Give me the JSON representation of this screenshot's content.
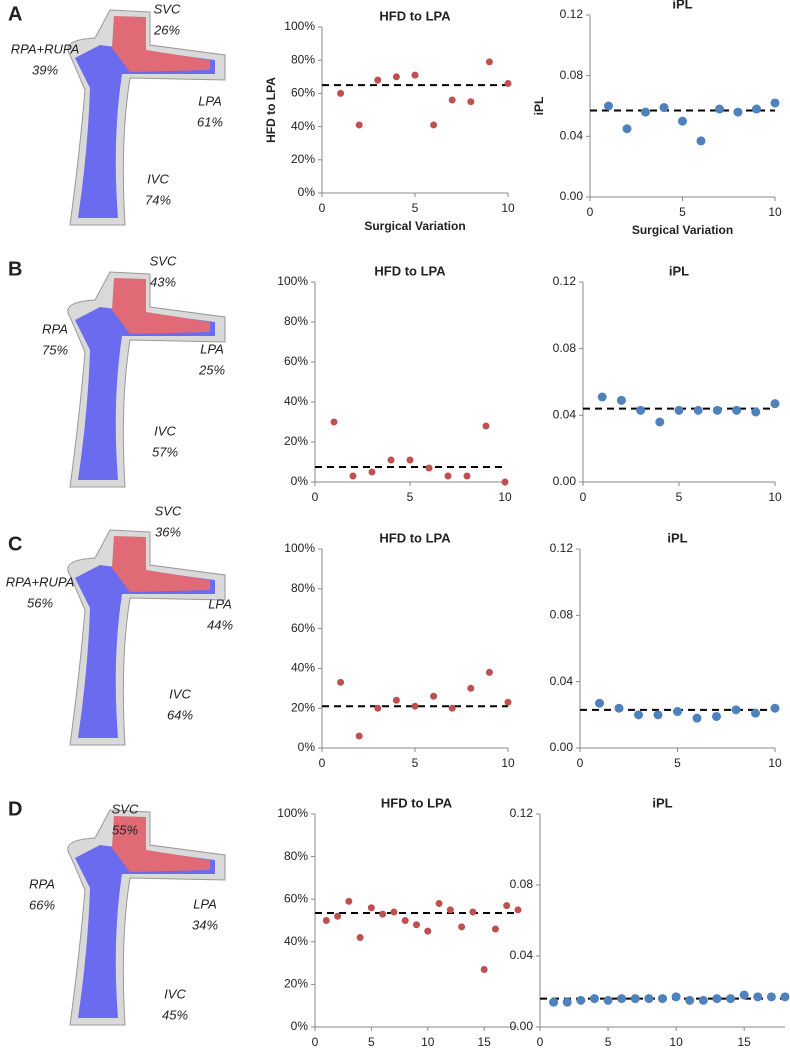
{
  "panels": [
    {
      "letter": "A",
      "labels": [
        [
          "SVC",
          "26%"
        ],
        [
          "RPA+RUPA",
          "39%"
        ],
        [
          "LPA",
          "61%"
        ],
        [
          "IVC",
          "74%"
        ]
      ]
    },
    {
      "letter": "B",
      "labels": [
        [
          "SVC",
          "43%"
        ],
        [
          "RPA",
          "75%"
        ],
        [
          "LPA",
          "25%"
        ],
        [
          "IVC",
          "57%"
        ]
      ]
    },
    {
      "letter": "C",
      "labels": [
        [
          "SVC",
          "36%"
        ],
        [
          "RPA+RUPA",
          "56%"
        ],
        [
          "LPA",
          "44%"
        ],
        [
          "IVC",
          "64%"
        ]
      ]
    },
    {
      "letter": "D",
      "labels": [
        [
          "SVC",
          "55%"
        ],
        [
          "RPA",
          "66%"
        ],
        [
          "LPA",
          "34%"
        ],
        [
          "IVC",
          "45%"
        ]
      ]
    }
  ],
  "chart_data": [
    {
      "type": "scatter",
      "title": "HFD to LPA",
      "ylabel": "HFD to LPA",
      "xlabel": "Surgical Variation",
      "color": "#c0504d",
      "x": [
        1,
        2,
        3,
        4,
        5,
        6,
        7,
        8,
        9,
        10
      ],
      "values": [
        60,
        41,
        68,
        70,
        71,
        41,
        56,
        55,
        79,
        66
      ],
      "hline": 65,
      "xlim": [
        0,
        10
      ],
      "xticks": [
        0,
        5,
        10
      ],
      "ylim": [
        0,
        100
      ],
      "yticks": [
        {
          "value": 0,
          "label": "0%"
        },
        {
          "value": 20,
          "label": "20%"
        },
        {
          "value": 40,
          "label": "40%"
        },
        {
          "value": 60,
          "label": "60%"
        },
        {
          "value": 80,
          "label": "80%"
        },
        {
          "value": 100,
          "label": "100%"
        }
      ]
    },
    {
      "type": "scatter",
      "title": "iPL",
      "ylabel": "iPL",
      "xlabel": "Surgical Variation",
      "color": "#4f81bd",
      "x": [
        1,
        2,
        3,
        4,
        5,
        6,
        7,
        8,
        9,
        10
      ],
      "values": [
        0.06,
        0.045,
        0.056,
        0.059,
        0.05,
        0.037,
        0.058,
        0.056,
        0.058,
        0.062
      ],
      "hline": 0.057,
      "xlim": [
        0,
        10
      ],
      "xticks": [
        0,
        5,
        10
      ],
      "ylim": [
        0,
        0.12
      ],
      "yticks": [
        {
          "value": 0,
          "label": "0.00"
        },
        0.04,
        0.08,
        0.12
      ]
    },
    {
      "type": "scatter",
      "title": "HFD to LPA",
      "color": "#c0504d",
      "x": [
        1,
        2,
        3,
        4,
        5,
        6,
        7,
        8,
        9,
        10
      ],
      "values": [
        30,
        3,
        5,
        11,
        11,
        7,
        3,
        3,
        28,
        0
      ],
      "hline": 7.5,
      "xlim": [
        0,
        10
      ],
      "xticks": [
        0,
        5,
        10
      ],
      "ylim": [
        0,
        100
      ],
      "yticks": [
        {
          "value": 0,
          "label": "0%"
        },
        {
          "value": 20,
          "label": "20%"
        },
        {
          "value": 40,
          "label": "40%"
        },
        {
          "value": 60,
          "label": "60%"
        },
        {
          "value": 80,
          "label": "80%"
        },
        {
          "value": 100,
          "label": "100%"
        }
      ]
    },
    {
      "type": "scatter",
      "title": "iPL",
      "color": "#4f81bd",
      "x": [
        1,
        2,
        3,
        4,
        5,
        6,
        7,
        8,
        9,
        10
      ],
      "values": [
        0.051,
        0.049,
        0.043,
        0.036,
        0.043,
        0.043,
        0.043,
        0.043,
        0.042,
        0.047
      ],
      "hline": 0.044,
      "xlim": [
        0,
        10
      ],
      "xticks": [
        0,
        5,
        10
      ],
      "ylim": [
        0,
        0.12
      ],
      "yticks": [
        {
          "value": 0,
          "label": "0.00"
        },
        0.04,
        0.08,
        0.12
      ]
    },
    {
      "type": "scatter",
      "title": "HFD to LPA",
      "color": "#c0504d",
      "x": [
        1,
        2,
        3,
        4,
        5,
        6,
        7,
        8,
        9,
        10
      ],
      "values": [
        33,
        6,
        20,
        24,
        21,
        26,
        20,
        30,
        38,
        23
      ],
      "hline": 21,
      "xlim": [
        0,
        10
      ],
      "xticks": [
        0,
        5,
        10
      ],
      "ylim": [
        0,
        100
      ],
      "yticks": [
        {
          "value": 0,
          "label": "0%"
        },
        {
          "value": 20,
          "label": "20%"
        },
        {
          "value": 40,
          "label": "40%"
        },
        {
          "value": 60,
          "label": "60%"
        },
        {
          "value": 80,
          "label": "80%"
        },
        {
          "value": 100,
          "label": "100%"
        }
      ]
    },
    {
      "type": "scatter",
      "title": "iPL",
      "color": "#4f81bd",
      "x": [
        1,
        2,
        3,
        4,
        5,
        6,
        7,
        8,
        9,
        10
      ],
      "values": [
        0.027,
        0.024,
        0.02,
        0.02,
        0.022,
        0.018,
        0.019,
        0.023,
        0.021,
        0.024
      ],
      "hline": 0.023,
      "xlim": [
        0,
        10
      ],
      "xticks": [
        0,
        5,
        10
      ],
      "ylim": [
        0,
        0.12
      ],
      "yticks": [
        {
          "value": 0,
          "label": "0.00"
        },
        0.04,
        0.08,
        0.12
      ]
    },
    {
      "type": "scatter",
      "title": "HFD to LPA",
      "color": "#c0504d",
      "x": [
        1,
        2,
        3,
        4,
        5,
        6,
        7,
        8,
        9,
        10,
        11,
        12,
        13,
        14,
        15,
        16,
        17,
        18
      ],
      "values": [
        50,
        52,
        59,
        42,
        56,
        53,
        54,
        50,
        48,
        45,
        58,
        55,
        47,
        54,
        27,
        46,
        57,
        55
      ],
      "hline": 53.5,
      "xlim": [
        0,
        18
      ],
      "xticks": [
        0,
        5,
        10,
        15
      ],
      "ylim": [
        0,
        100
      ],
      "yticks": [
        {
          "value": 0,
          "label": "0%"
        },
        {
          "value": 20,
          "label": "20%"
        },
        {
          "value": 40,
          "label": "40%"
        },
        {
          "value": 60,
          "label": "60%"
        },
        {
          "value": 80,
          "label": "80%"
        },
        {
          "value": 100,
          "label": "100%"
        }
      ]
    },
    {
      "type": "scatter",
      "title": "iPL",
      "color": "#4f81bd",
      "x": [
        1,
        2,
        3,
        4,
        5,
        6,
        7,
        8,
        9,
        10,
        11,
        12,
        13,
        14,
        15,
        16,
        17,
        18
      ],
      "values": [
        0.014,
        0.014,
        0.015,
        0.016,
        0.015,
        0.016,
        0.016,
        0.016,
        0.016,
        0.017,
        0.015,
        0.015,
        0.016,
        0.016,
        0.018,
        0.017,
        0.017,
        0.017
      ],
      "hline": 0.016,
      "xlim": [
        0,
        18
      ],
      "xticks": [
        0,
        5,
        10,
        15
      ],
      "ylim": [
        0,
        0.12
      ],
      "yticks": [
        {
          "value": 0,
          "label": "0.00"
        },
        0.04,
        0.08,
        0.12
      ]
    }
  ]
}
